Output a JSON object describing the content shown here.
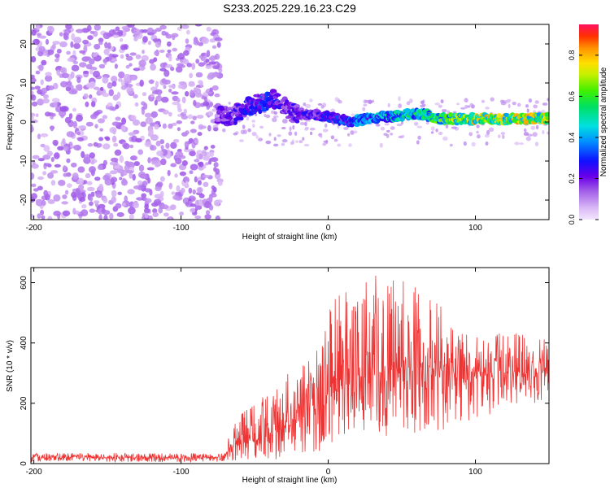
{
  "title": "S233.2025.229.16.23.C29",
  "chart_data": [
    {
      "type": "heatmap",
      "xlabel": "Height of straight line (km)",
      "ylabel": "Frequency (Hz)",
      "xlim": [
        -202,
        150
      ],
      "ylim": [
        -25,
        25
      ],
      "xticks": [
        -200,
        -100,
        0,
        100
      ],
      "yticks": [
        -20,
        -10,
        0,
        10,
        20
      ],
      "colorbar": {
        "label": "Normalized spectral amplitude",
        "range": [
          0,
          0.95
        ],
        "ticks": [
          0.0,
          0.2,
          0.4,
          0.6,
          0.8
        ],
        "tick_labels": [
          "0.0",
          "0.2",
          "0.4",
          "0.6",
          "0.8"
        ]
      },
      "noise_region": {
        "x_range": [
          -202,
          -73
        ],
        "freq_range": [
          -25,
          25
        ],
        "amplitude_range": [
          0.05,
          0.15
        ]
      },
      "signal_ridge": {
        "x": [
          -75,
          -65,
          -55,
          -45,
          -35,
          -25,
          -15,
          -5,
          5,
          15,
          25,
          35,
          45,
          55,
          65,
          75,
          85,
          95,
          105,
          115,
          125,
          135,
          145,
          150
        ],
        "center_freq": [
          1.5,
          1.5,
          4,
          5,
          6,
          2.5,
          2,
          1.5,
          1,
          0,
          0.8,
          1.2,
          1.5,
          2,
          2,
          0.8,
          0.8,
          0.8,
          0.8,
          0.8,
          0.8,
          0.8,
          1,
          1
        ],
        "peak_amplitude": [
          0.25,
          0.25,
          0.3,
          0.35,
          0.3,
          0.25,
          0.3,
          0.3,
          0.35,
          0.4,
          0.45,
          0.5,
          0.55,
          0.6,
          0.6,
          0.7,
          0.75,
          0.8,
          0.85,
          0.85,
          0.85,
          0.85,
          0.85,
          0.85
        ]
      },
      "grid": false
    },
    {
      "type": "line",
      "xlabel": "Height of straight line (km)",
      "ylabel": "SNR (10 * v/v)",
      "xlim": [
        -202,
        150
      ],
      "ylim": [
        0,
        650
      ],
      "xticks": [
        -200,
        -100,
        0,
        100
      ],
      "yticks": [
        0,
        200,
        400,
        600
      ],
      "series_color": "#ee3333",
      "envelope": {
        "x": [
          -202,
          -150,
          -100,
          -70,
          -65,
          -50,
          -35,
          -20,
          -10,
          0,
          10,
          20,
          30,
          40,
          50,
          60,
          70,
          80,
          90,
          100,
          110,
          120,
          130,
          140,
          150
        ],
        "mean": [
          20,
          20,
          20,
          20,
          60,
          80,
          110,
          150,
          200,
          230,
          260,
          280,
          300,
          310,
          320,
          320,
          315,
          310,
          310,
          305,
          300,
          300,
          300,
          300,
          300
        ],
        "max": [
          35,
          35,
          35,
          35,
          150,
          200,
          270,
          330,
          420,
          520,
          600,
          600,
          640,
          640,
          640,
          600,
          560,
          500,
          460,
          420,
          420,
          440,
          430,
          420,
          410
        ],
        "min": [
          5,
          5,
          5,
          5,
          10,
          10,
          10,
          20,
          30,
          30,
          80,
          80,
          90,
          90,
          100,
          100,
          110,
          90,
          130,
          150,
          160,
          200,
          190,
          200,
          190
        ]
      },
      "grid": false
    }
  ]
}
